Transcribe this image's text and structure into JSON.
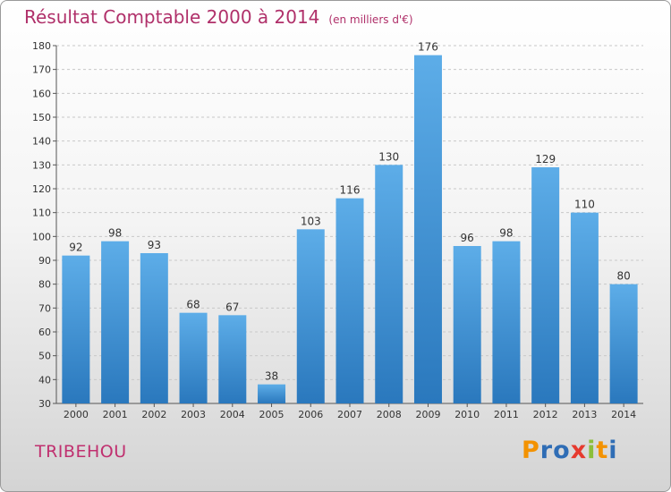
{
  "title": "Résultat Comptable 2000 à 2014",
  "title_unit": "(en milliers d'€)",
  "commune": "TRIBEHOU",
  "logo": {
    "text": "Proxiti",
    "letters": [
      "P",
      "r",
      "o",
      "x",
      "i",
      "t",
      "i"
    ],
    "colors": [
      "#f39200",
      "#2f6db5",
      "#2f6db5",
      "#e63a2e",
      "#8bbf3a",
      "#f39200",
      "#2f6db5"
    ]
  },
  "colors": {
    "bar_top": "#5dade8",
    "bar_bottom": "#2a78bd",
    "title": "#b0306a",
    "axis": "#555555"
  },
  "chart_data": {
    "type": "bar",
    "title": "Résultat Comptable 2000 à 2014",
    "xlabel": "",
    "ylabel": "",
    "categories": [
      "2000",
      "2001",
      "2002",
      "2003",
      "2004",
      "2005",
      "2006",
      "2007",
      "2008",
      "2009",
      "2010",
      "2011",
      "2012",
      "2013",
      "2014"
    ],
    "values": [
      92,
      98,
      93,
      68,
      67,
      38,
      103,
      116,
      130,
      176,
      96,
      98,
      129,
      110,
      80
    ],
    "ylim": [
      30,
      180
    ],
    "yticks": [
      30,
      40,
      50,
      60,
      70,
      80,
      90,
      100,
      110,
      120,
      130,
      140,
      150,
      160,
      170,
      180
    ],
    "grid": true,
    "data_labels": true
  }
}
